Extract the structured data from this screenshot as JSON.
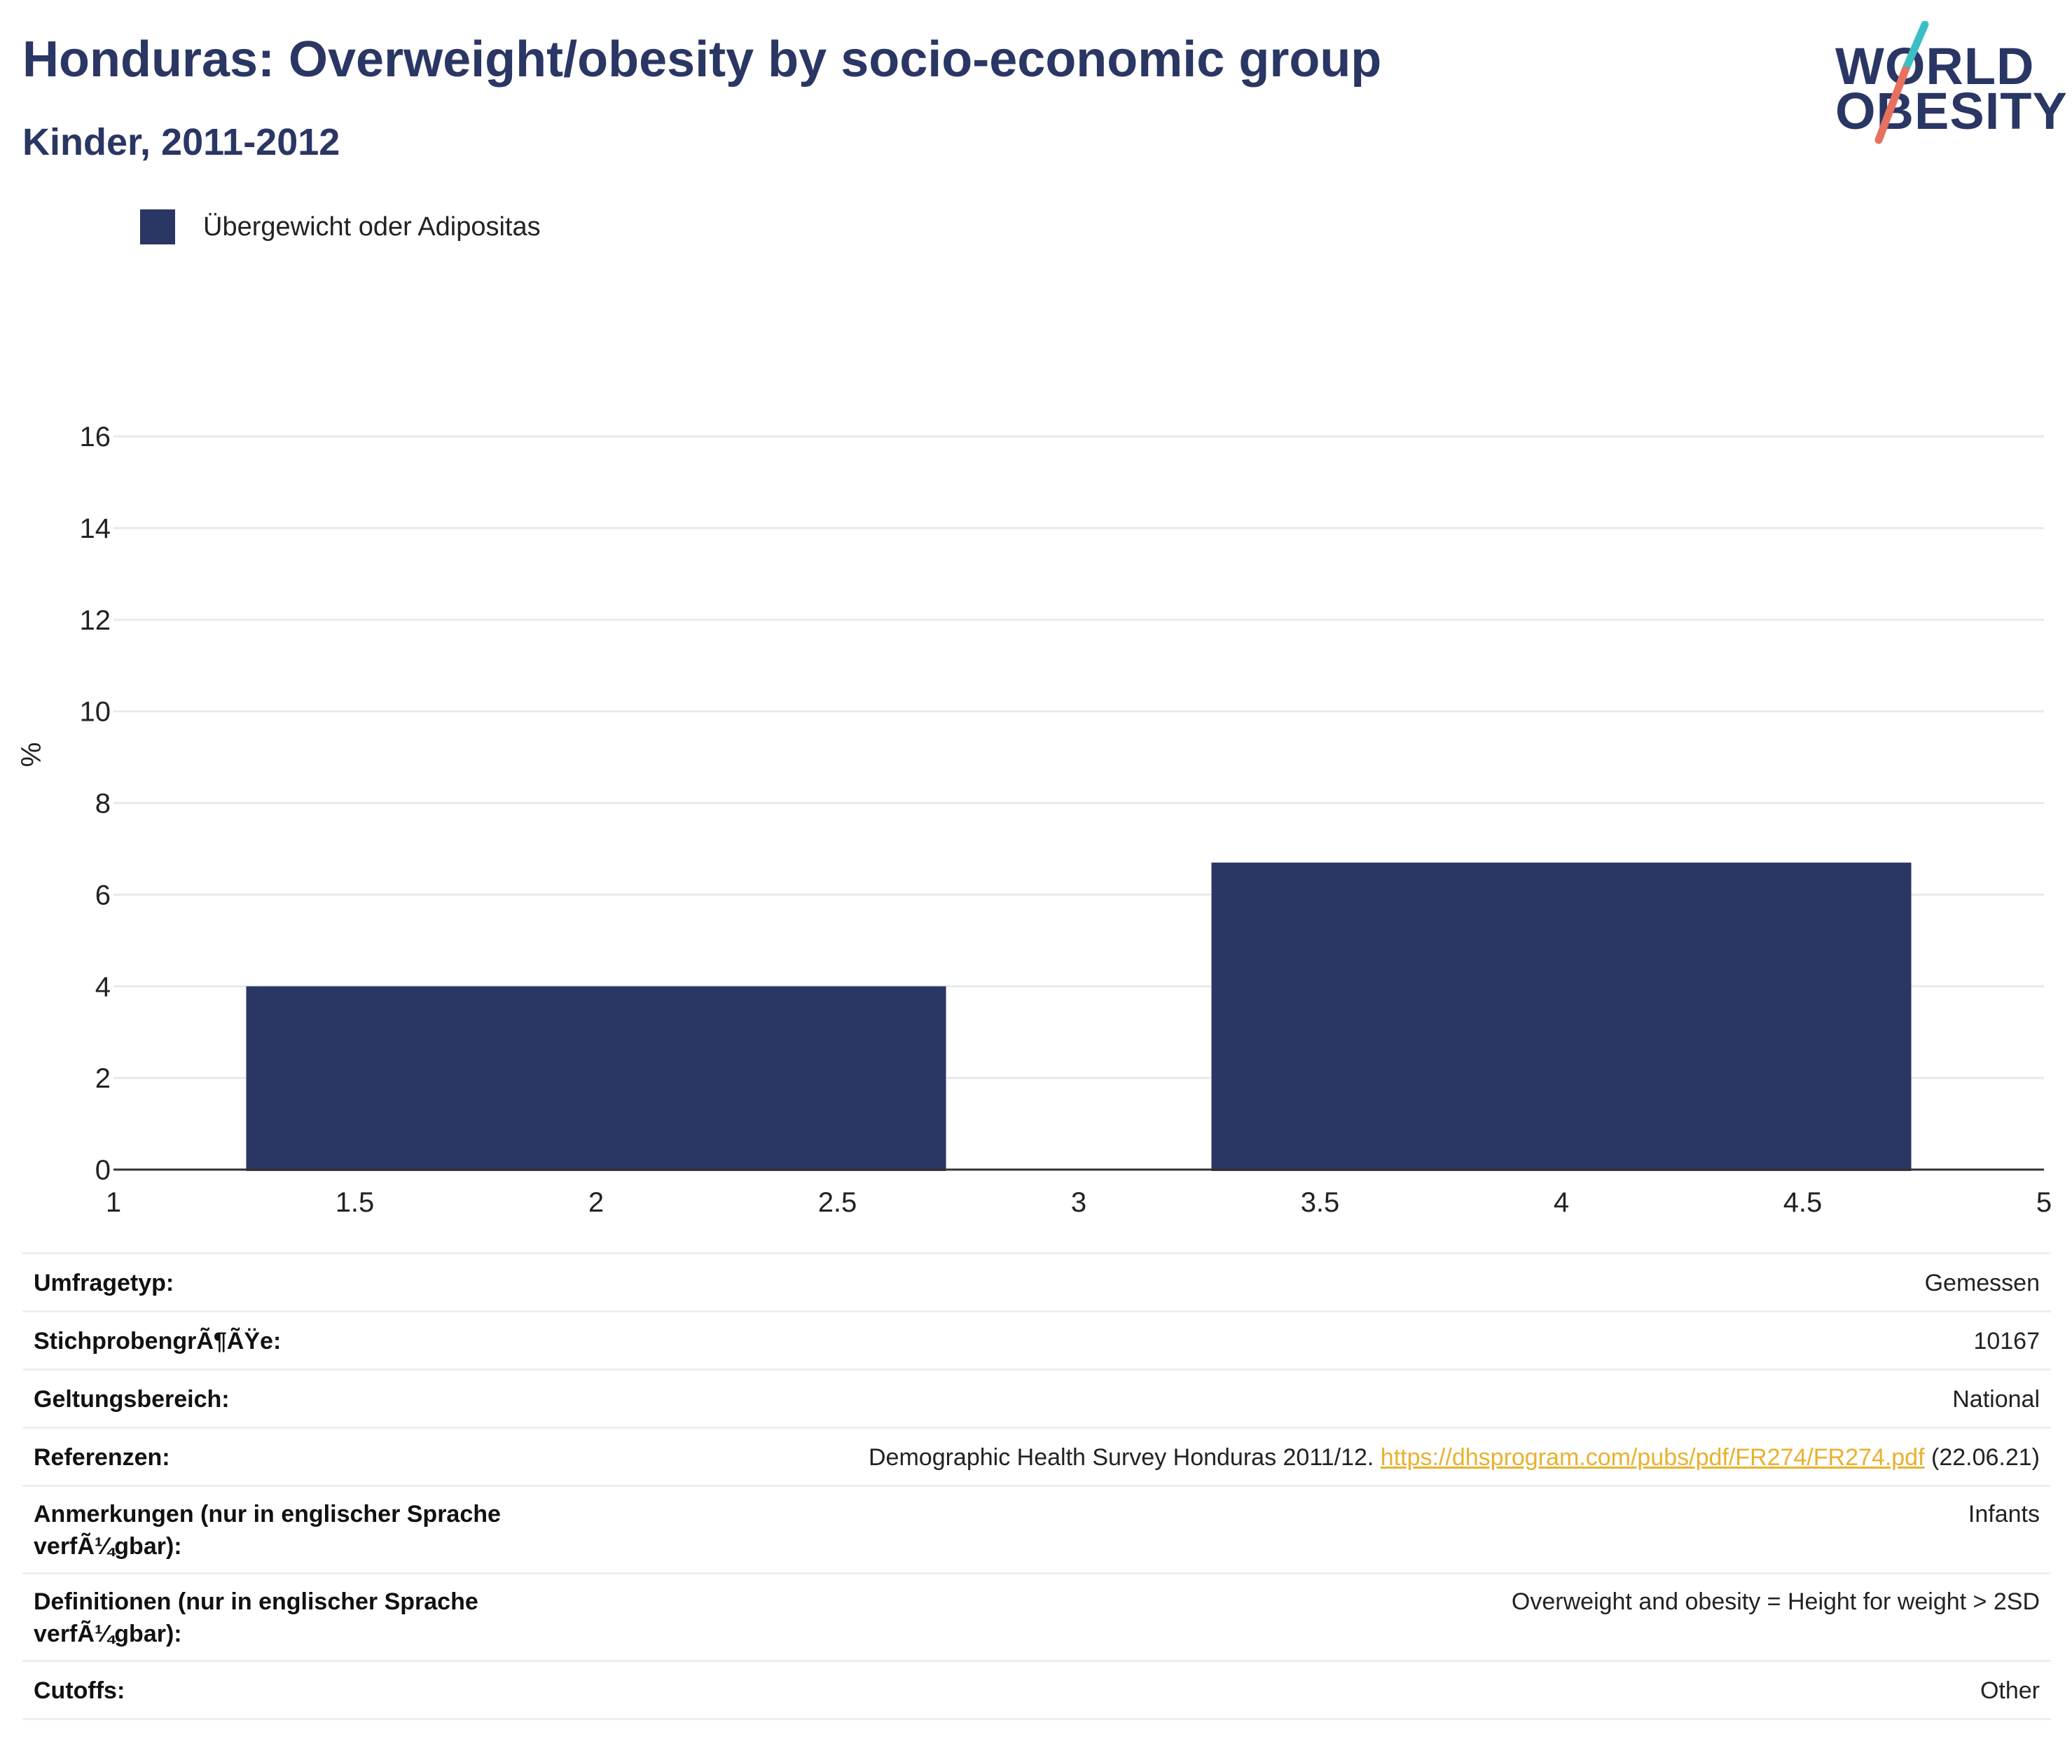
{
  "header": {
    "title": "Honduras: Overweight/obesity by socio-economic group",
    "subtitle": "Kinder, 2011-2012"
  },
  "logo": {
    "line1": "WORLD",
    "line2": "OBESITY",
    "accent_teal": "#3cbfc4",
    "accent_coral": "#e8705f"
  },
  "legend": {
    "label": "Übergewicht oder Adipositas",
    "color": "#2a3663"
  },
  "chart_data": {
    "type": "bar",
    "ylabel": "%",
    "xlabel": "",
    "xlim": [
      1,
      5
    ],
    "ylim": [
      0,
      17.5
    ],
    "x_ticks": [
      1,
      1.5,
      2,
      2.5,
      3,
      3.5,
      4,
      4.5,
      5
    ],
    "x_tick_labels": [
      "1",
      "1.5",
      "2",
      "2.5",
      "3",
      "3.5",
      "4",
      "4.5",
      "5"
    ],
    "y_ticks": [
      0,
      2,
      4,
      6,
      8,
      10,
      12,
      14,
      16
    ],
    "y_tick_labels": [
      "0",
      "2",
      "4",
      "6",
      "8",
      "10",
      "12",
      "14",
      "16"
    ],
    "grid": true,
    "legend_position": "top-left",
    "series": [
      {
        "name": "Übergewicht oder Adipositas",
        "color": "#2a3663",
        "x": [
          2,
          4
        ],
        "values": [
          4.0,
          6.7
        ]
      }
    ]
  },
  "meta": {
    "rows": [
      {
        "key": "Umfragetyp:",
        "value": "Gemessen"
      },
      {
        "key": "StichprobengrÃ¶ÃŸe:",
        "value": "10167"
      },
      {
        "key": "Geltungsbereich:",
        "value": "National"
      },
      {
        "key": "Referenzen:",
        "value_prefix": "Demographic Health Survey Honduras 2011/12.",
        "link": "https://dhsprogram.com/pubs/pdf/FR274/FR274.pdf",
        "value_suffix": "(22.06.21)"
      },
      {
        "key": "Anmerkungen (nur in englischer Sprache verfÃ¼gbar):",
        "value": "Infants"
      },
      {
        "key": "Definitionen (nur in englischer Sprache verfÃ¼gbar):",
        "value": "Overweight and obesity = Height for weight > 2SD"
      },
      {
        "key": "Cutoffs:",
        "value": "Other"
      }
    ]
  }
}
